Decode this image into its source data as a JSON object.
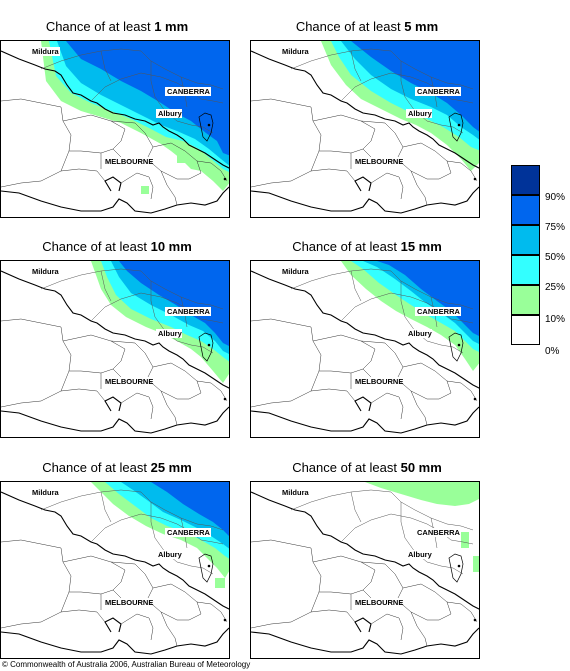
{
  "panels": [
    {
      "title_prefix": "Chance of at least ",
      "amount": "1 mm",
      "has_canberra_label": true
    },
    {
      "title_prefix": "Chance of at least ",
      "amount": "5 mm",
      "has_canberra_label": true
    },
    {
      "title_prefix": "Chance of at least ",
      "amount": "10 mm",
      "has_canberra_label": true
    },
    {
      "title_prefix": "Chance of at least ",
      "amount": "15 mm",
      "has_canberra_label": true
    },
    {
      "title_prefix": "Chance of at least ",
      "amount": "25 mm",
      "has_canberra_label": true
    },
    {
      "title_prefix": "Chance of at least ",
      "amount": "50 mm",
      "has_canberra_label": true
    }
  ],
  "cities": {
    "mildura": "Mildura",
    "canberra": "CANBERRA",
    "albury": "Albury",
    "melbourne": "MELBOURNE"
  },
  "legend": {
    "colors": [
      "#003399",
      "#0066ee",
      "#00bbee",
      "#33ffff",
      "#99ff99",
      "#ffffff"
    ],
    "labels": [
      "90%",
      "75%",
      "50%",
      "25%",
      "10%",
      "0%"
    ]
  },
  "copyright": "© Commonwealth of Australia 2006, Australian Bureau of Meteorology"
}
